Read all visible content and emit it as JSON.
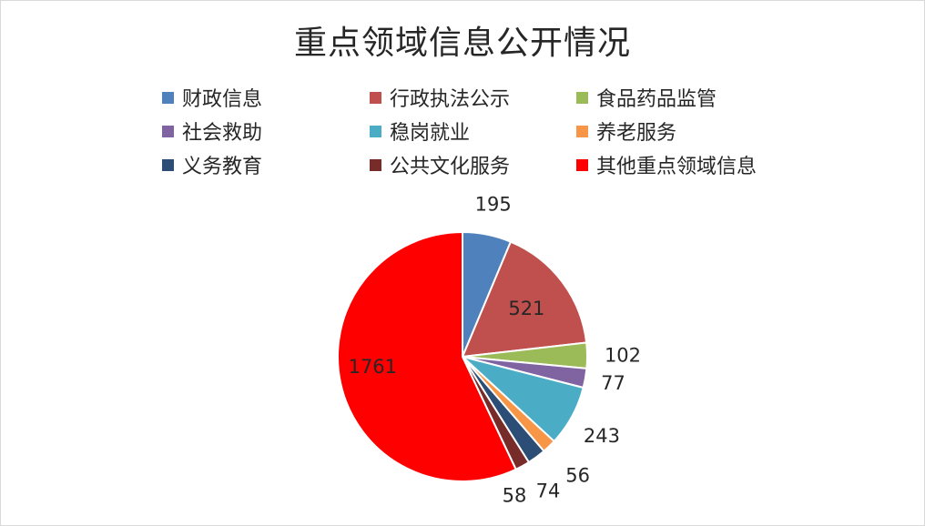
{
  "chart_data": {
    "type": "pie",
    "title": "重点领域信息公开情况",
    "legend_position": "top",
    "categories": [
      "财政信息",
      "行政执法公示",
      "食品药品监管",
      "社会救助",
      "稳岗就业",
      "养老服务",
      "义务教育",
      "公共文化服务",
      "其他重点领域信息"
    ],
    "values": [
      195,
      521,
      102,
      77,
      243,
      56,
      74,
      58,
      1761
    ],
    "colors": [
      "#4f81bd",
      "#c0504d",
      "#9bbb59",
      "#8064a2",
      "#4bacc6",
      "#f79646",
      "#2c4d75",
      "#772c2a",
      "#ff0000"
    ]
  }
}
